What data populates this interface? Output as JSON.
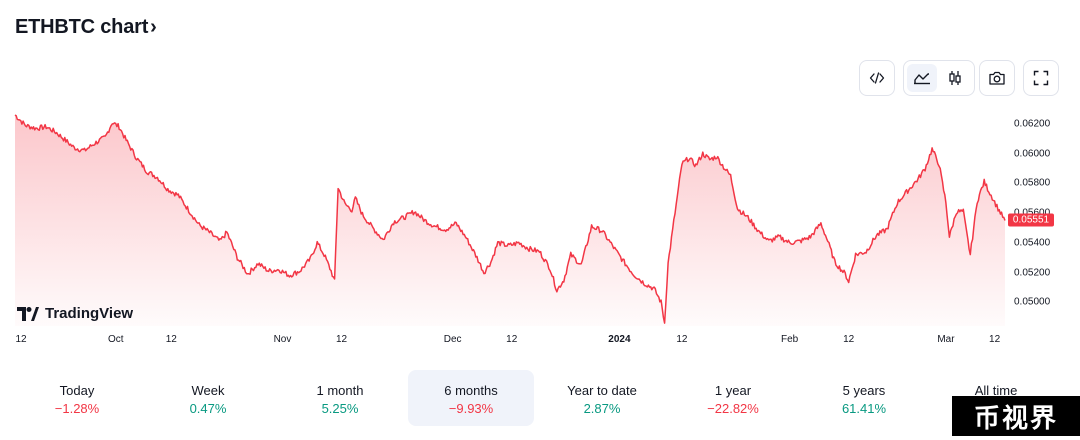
{
  "header": {
    "title": "ETHBTC chart",
    "chevron": "›"
  },
  "toolbar": {
    "icons": [
      "code-icon",
      "area-chart-icon",
      "candlestick-icon",
      "camera-icon",
      "fullscreen-icon"
    ],
    "active": "area-chart-icon"
  },
  "branding": {
    "logo_text": "TradingView"
  },
  "colors": {
    "line": "#f23645",
    "fill_top": "#f23645",
    "positive": "#089981",
    "negative": "#f23645",
    "active_bg": "#f0f3fa"
  },
  "chart_data": {
    "type": "area",
    "series": [
      {
        "points": [
          [
            0,
            0.0626
          ],
          [
            3,
            0.0619
          ],
          [
            6,
            0.0617
          ],
          [
            9,
            0.0618
          ],
          [
            12,
            0.0614
          ],
          [
            15,
            0.0608
          ],
          [
            17,
            0.0604
          ],
          [
            20,
            0.0602
          ],
          [
            23,
            0.0607
          ],
          [
            26,
            0.0611
          ],
          [
            28,
            0.0621
          ],
          [
            30,
            0.0618
          ],
          [
            32,
            0.0609
          ],
          [
            35,
            0.0597
          ],
          [
            38,
            0.0588
          ],
          [
            41,
            0.0584
          ],
          [
            44,
            0.0576
          ],
          [
            47,
            0.0572
          ],
          [
            50,
            0.0562
          ],
          [
            53,
            0.0552
          ],
          [
            56,
            0.0547
          ],
          [
            59,
            0.0541
          ],
          [
            61,
            0.0547
          ],
          [
            64,
            0.053
          ],
          [
            67,
            0.0519
          ],
          [
            70,
            0.0526
          ],
          [
            73,
            0.0521
          ],
          [
            76,
            0.0522
          ],
          [
            79,
            0.0518
          ],
          [
            82,
            0.0521
          ],
          [
            85,
            0.0529
          ],
          [
            87,
            0.054
          ],
          [
            89,
            0.0532
          ],
          [
            91,
            0.0521
          ],
          [
            92,
            0.0514
          ],
          [
            93,
            0.0577
          ],
          [
            95,
            0.0566
          ],
          [
            97,
            0.0562
          ],
          [
            98,
            0.057
          ],
          [
            100,
            0.0559
          ],
          [
            103,
            0.055
          ],
          [
            106,
            0.0542
          ],
          [
            109,
            0.0554
          ],
          [
            112,
            0.0557
          ],
          [
            115,
            0.0561
          ],
          [
            118,
            0.0555
          ],
          [
            121,
            0.0551
          ],
          [
            124,
            0.0549
          ],
          [
            127,
            0.0553
          ],
          [
            130,
            0.0543
          ],
          [
            133,
            0.053
          ],
          [
            135,
            0.052
          ],
          [
            137,
            0.0527
          ],
          [
            139,
            0.054
          ],
          [
            142,
            0.0538
          ],
          [
            145,
            0.054
          ],
          [
            148,
            0.0536
          ],
          [
            151,
            0.0534
          ],
          [
            154,
            0.0523
          ],
          [
            156,
            0.0508
          ],
          [
            158,
            0.0515
          ],
          [
            160,
            0.0532
          ],
          [
            163,
            0.0525
          ],
          [
            166,
            0.0551
          ],
          [
            169,
            0.0548
          ],
          [
            172,
            0.0538
          ],
          [
            175,
            0.0528
          ],
          [
            178,
            0.0519
          ],
          [
            181,
            0.0513
          ],
          [
            184,
            0.0509
          ],
          [
            186,
            0.05
          ],
          [
            187,
            0.0486
          ],
          [
            188,
            0.0526
          ],
          [
            190,
            0.056
          ],
          [
            192,
            0.0593
          ],
          [
            194,
            0.0597
          ],
          [
            196,
            0.0592
          ],
          [
            198,
            0.06
          ],
          [
            200,
            0.0596
          ],
          [
            202,
            0.0598
          ],
          [
            204,
            0.0591
          ],
          [
            206,
            0.0585
          ],
          [
            208,
            0.0563
          ],
          [
            211,
            0.0557
          ],
          [
            214,
            0.0548
          ],
          [
            217,
            0.0541
          ],
          [
            220,
            0.0544
          ],
          [
            223,
            0.054
          ],
          [
            226,
            0.0541
          ],
          [
            229,
            0.0544
          ],
          [
            232,
            0.0553
          ],
          [
            234,
            0.0541
          ],
          [
            236,
            0.0527
          ],
          [
            239,
            0.0519
          ],
          [
            240,
            0.0514
          ],
          [
            242,
            0.0532
          ],
          [
            245,
            0.0534
          ],
          [
            248,
            0.0545
          ],
          [
            251,
            0.0549
          ],
          [
            254,
            0.0567
          ],
          [
            257,
            0.0575
          ],
          [
            260,
            0.0583
          ],
          [
            262,
            0.059
          ],
          [
            264,
            0.0603
          ],
          [
            266,
            0.0593
          ],
          [
            268,
            0.0567
          ],
          [
            269,
            0.0544
          ],
          [
            271,
            0.0561
          ],
          [
            273,
            0.0561
          ],
          [
            274,
            0.0546
          ],
          [
            275,
            0.0532
          ],
          [
            277,
            0.0568
          ],
          [
            279,
            0.0581
          ],
          [
            281,
            0.0572
          ],
          [
            283,
            0.0563
          ],
          [
            285,
            0.0555
          ]
        ]
      }
    ],
    "ylim": [
      0.0484,
      0.0628
    ],
    "y_ticks": [
      "0.06200",
      "0.06000",
      "0.05800",
      "0.05600",
      "0.05400",
      "0.05200",
      "0.05000"
    ],
    "y_tick_values": [
      0.062,
      0.06,
      0.058,
      0.056,
      0.054,
      0.052,
      0.05
    ],
    "x_ticks": [
      {
        "label": "12",
        "day": 0,
        "bold": false
      },
      {
        "label": "Oct",
        "day": 29,
        "bold": false
      },
      {
        "label": "12",
        "day": 45,
        "bold": false
      },
      {
        "label": "Nov",
        "day": 77,
        "bold": false
      },
      {
        "label": "12",
        "day": 94,
        "bold": false
      },
      {
        "label": "Dec",
        "day": 126,
        "bold": false
      },
      {
        "label": "12",
        "day": 143,
        "bold": false
      },
      {
        "label": "2024",
        "day": 174,
        "bold": true
      },
      {
        "label": "12",
        "day": 192,
        "bold": false
      },
      {
        "label": "Feb",
        "day": 223,
        "bold": false
      },
      {
        "label": "12",
        "day": 240,
        "bold": false
      },
      {
        "label": "Mar",
        "day": 268,
        "bold": false
      },
      {
        "label": "12",
        "day": 282,
        "bold": false
      }
    ],
    "last_price": "0.05551",
    "last_value": 0.05551,
    "grid": false
  },
  "periods": [
    {
      "label": "Today",
      "value": "−1.28%",
      "trend": "neg"
    },
    {
      "label": "Week",
      "value": "0.47%",
      "trend": "pos"
    },
    {
      "label": "1 month",
      "value": "5.25%",
      "trend": "pos"
    },
    {
      "label": "6 months",
      "value": "−9.93%",
      "trend": "neg",
      "active": true
    },
    {
      "label": "Year to date",
      "value": "2.87%",
      "trend": "pos"
    },
    {
      "label": "1 year",
      "value": "−22.82%",
      "trend": "neg"
    },
    {
      "label": "5 years",
      "value": "61.41%",
      "trend": "pos"
    },
    {
      "label": "All time",
      "value": "",
      "trend": "pos"
    }
  ],
  "watermark": {
    "text": "币视界"
  }
}
